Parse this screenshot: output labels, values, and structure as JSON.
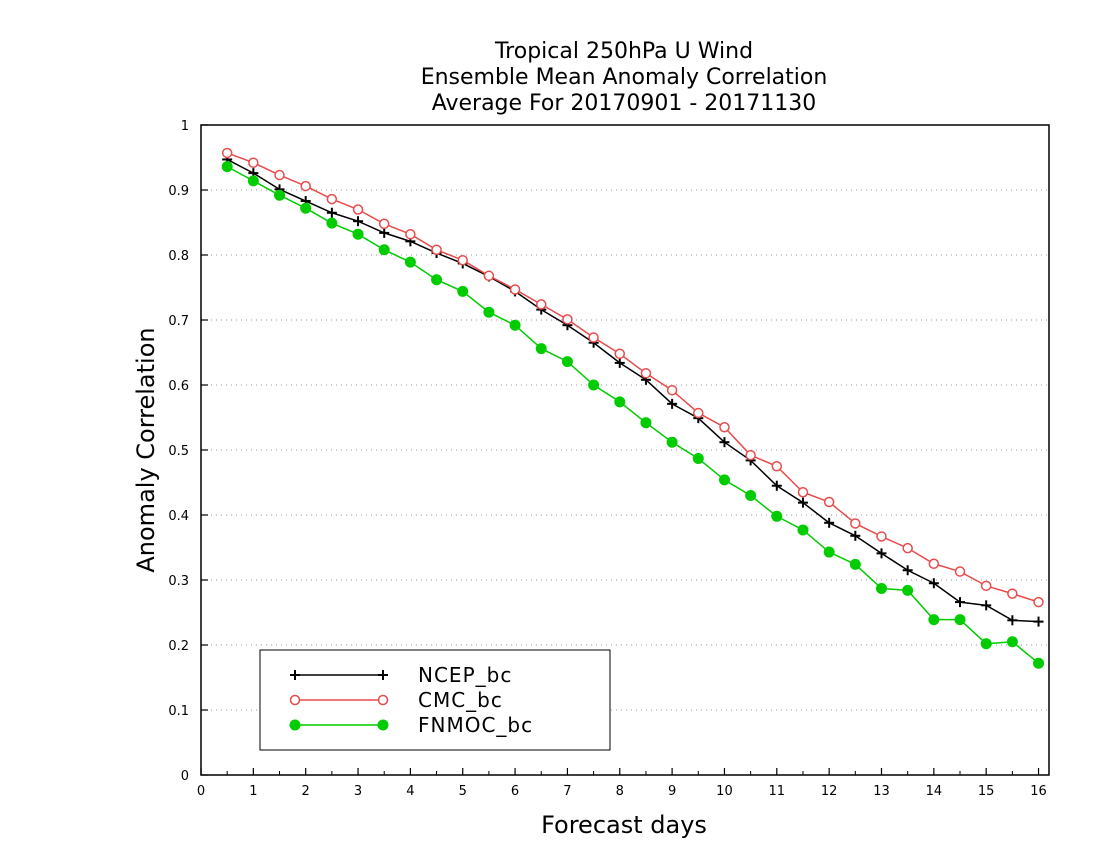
{
  "chart_data": {
    "type": "line",
    "title": [
      "Tropical 250hPa U Wind",
      "Ensemble Mean Anomaly Correlation",
      "Average For 20170901 - 20171130"
    ],
    "xlabel": "Forecast days",
    "ylabel": "Anomaly Correlation",
    "xlim": [
      0,
      16.2
    ],
    "ylim": [
      0,
      1
    ],
    "xticks": [
      0,
      1,
      2,
      3,
      4,
      5,
      6,
      7,
      8,
      9,
      10,
      11,
      12,
      13,
      14,
      15,
      16
    ],
    "xtick_labels": [
      "0",
      "1",
      "2",
      "3",
      "4",
      "5",
      "6",
      "7",
      "8",
      "9",
      "10",
      "11",
      "12",
      "13",
      "14",
      "15",
      "16"
    ],
    "yticks": [
      0,
      0.1,
      0.2,
      0.3,
      0.4,
      0.5,
      0.6,
      0.7,
      0.8,
      0.9,
      1
    ],
    "ytick_labels": [
      "0",
      "0.1",
      "0.2",
      "0.3",
      "0.4",
      "0.5",
      "0.6",
      "0.7",
      "0.8",
      "0.9",
      "1"
    ],
    "grid": "horizontal dotted",
    "legend_position": "bottom-left",
    "x": [
      0.5,
      1,
      1.5,
      2,
      2.5,
      3,
      3.5,
      4,
      4.5,
      5,
      5.5,
      6,
      6.5,
      7,
      7.5,
      8,
      8.5,
      9,
      9.5,
      10,
      10.5,
      11,
      11.5,
      12,
      12.5,
      13,
      13.5,
      14,
      14.5,
      15,
      15.5,
      16
    ],
    "series": [
      {
        "name": "NCEP_bc",
        "color": "#000000",
        "marker": "plus",
        "values": [
          0.947,
          0.926,
          0.901,
          0.883,
          0.865,
          0.852,
          0.834,
          0.821,
          0.803,
          0.787,
          0.767,
          0.744,
          0.716,
          0.692,
          0.665,
          0.634,
          0.608,
          0.571,
          0.549,
          0.512,
          0.484,
          0.445,
          0.419,
          0.388,
          0.368,
          0.341,
          0.315,
          0.295,
          0.266,
          0.261,
          0.238,
          0.236
        ]
      },
      {
        "name": "CMC_bc",
        "color": "#e84b4b",
        "marker": "open-circle",
        "values": [
          0.957,
          0.942,
          0.923,
          0.906,
          0.886,
          0.87,
          0.848,
          0.832,
          0.808,
          0.792,
          0.768,
          0.747,
          0.724,
          0.701,
          0.673,
          0.648,
          0.618,
          0.592,
          0.557,
          0.535,
          0.492,
          0.475,
          0.435,
          0.42,
          0.387,
          0.367,
          0.349,
          0.325,
          0.313,
          0.291,
          0.279,
          0.266
        ]
      },
      {
        "name": "FNMOC_bc",
        "color": "#00cc00",
        "marker": "filled-circle",
        "values": [
          0.936,
          0.914,
          0.892,
          0.872,
          0.849,
          0.832,
          0.808,
          0.789,
          0.762,
          0.744,
          0.712,
          0.692,
          0.656,
          0.636,
          0.6,
          0.574,
          0.542,
          0.512,
          0.487,
          0.454,
          0.43,
          0.398,
          0.377,
          0.343,
          0.324,
          0.287,
          0.284,
          0.239,
          0.239,
          0.202,
          0.205,
          0.172
        ]
      }
    ]
  }
}
